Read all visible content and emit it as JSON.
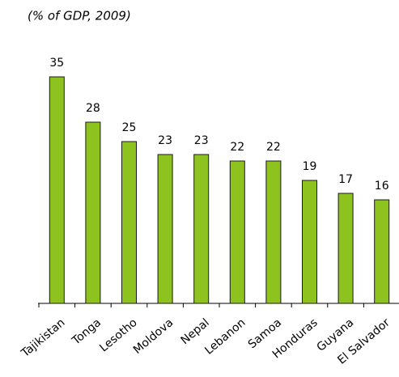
{
  "chart_data": {
    "type": "bar",
    "subtitle": "(% of GDP, 2009)",
    "categories": [
      "Tajikistan",
      "Tonga",
      "Lesotho",
      "Moldova",
      "Nepal",
      "Lebanon",
      "Samoa",
      "Honduras",
      "Guyana",
      "El Salvador"
    ],
    "values": [
      35,
      28,
      25,
      23,
      23,
      22,
      22,
      19,
      17,
      16
    ],
    "color": "#8dc21f",
    "ylim": [
      0,
      35
    ]
  }
}
